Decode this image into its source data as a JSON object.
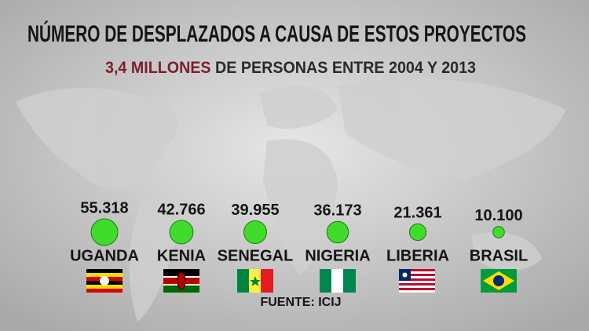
{
  "chart_data": {
    "type": "bubble",
    "title": "NÚMERO DE DESPLAZADOS A CAUSA DE ESTOS PROYECTOS",
    "subtitle_parts": [
      {
        "text": "3,4 MILLONES",
        "color": "#7a1f2a"
      },
      {
        "text": "DE PERSONAS ENTRE 2004 Y 2013",
        "color": "#2a2a2a"
      }
    ],
    "categories": [
      "UGANDA",
      "KENIA",
      "SENEGAL",
      "NIGERIA",
      "LIBERIA",
      "BRASIL"
    ],
    "values": [
      55318,
      42766,
      39955,
      36173,
      21361,
      10100
    ],
    "value_labels": [
      "55.318",
      "42.766",
      "39.955",
      "36.173",
      "21.361",
      "10.100"
    ],
    "color": "#3fdc2c",
    "source": "FUENTE: ICIJ"
  }
}
